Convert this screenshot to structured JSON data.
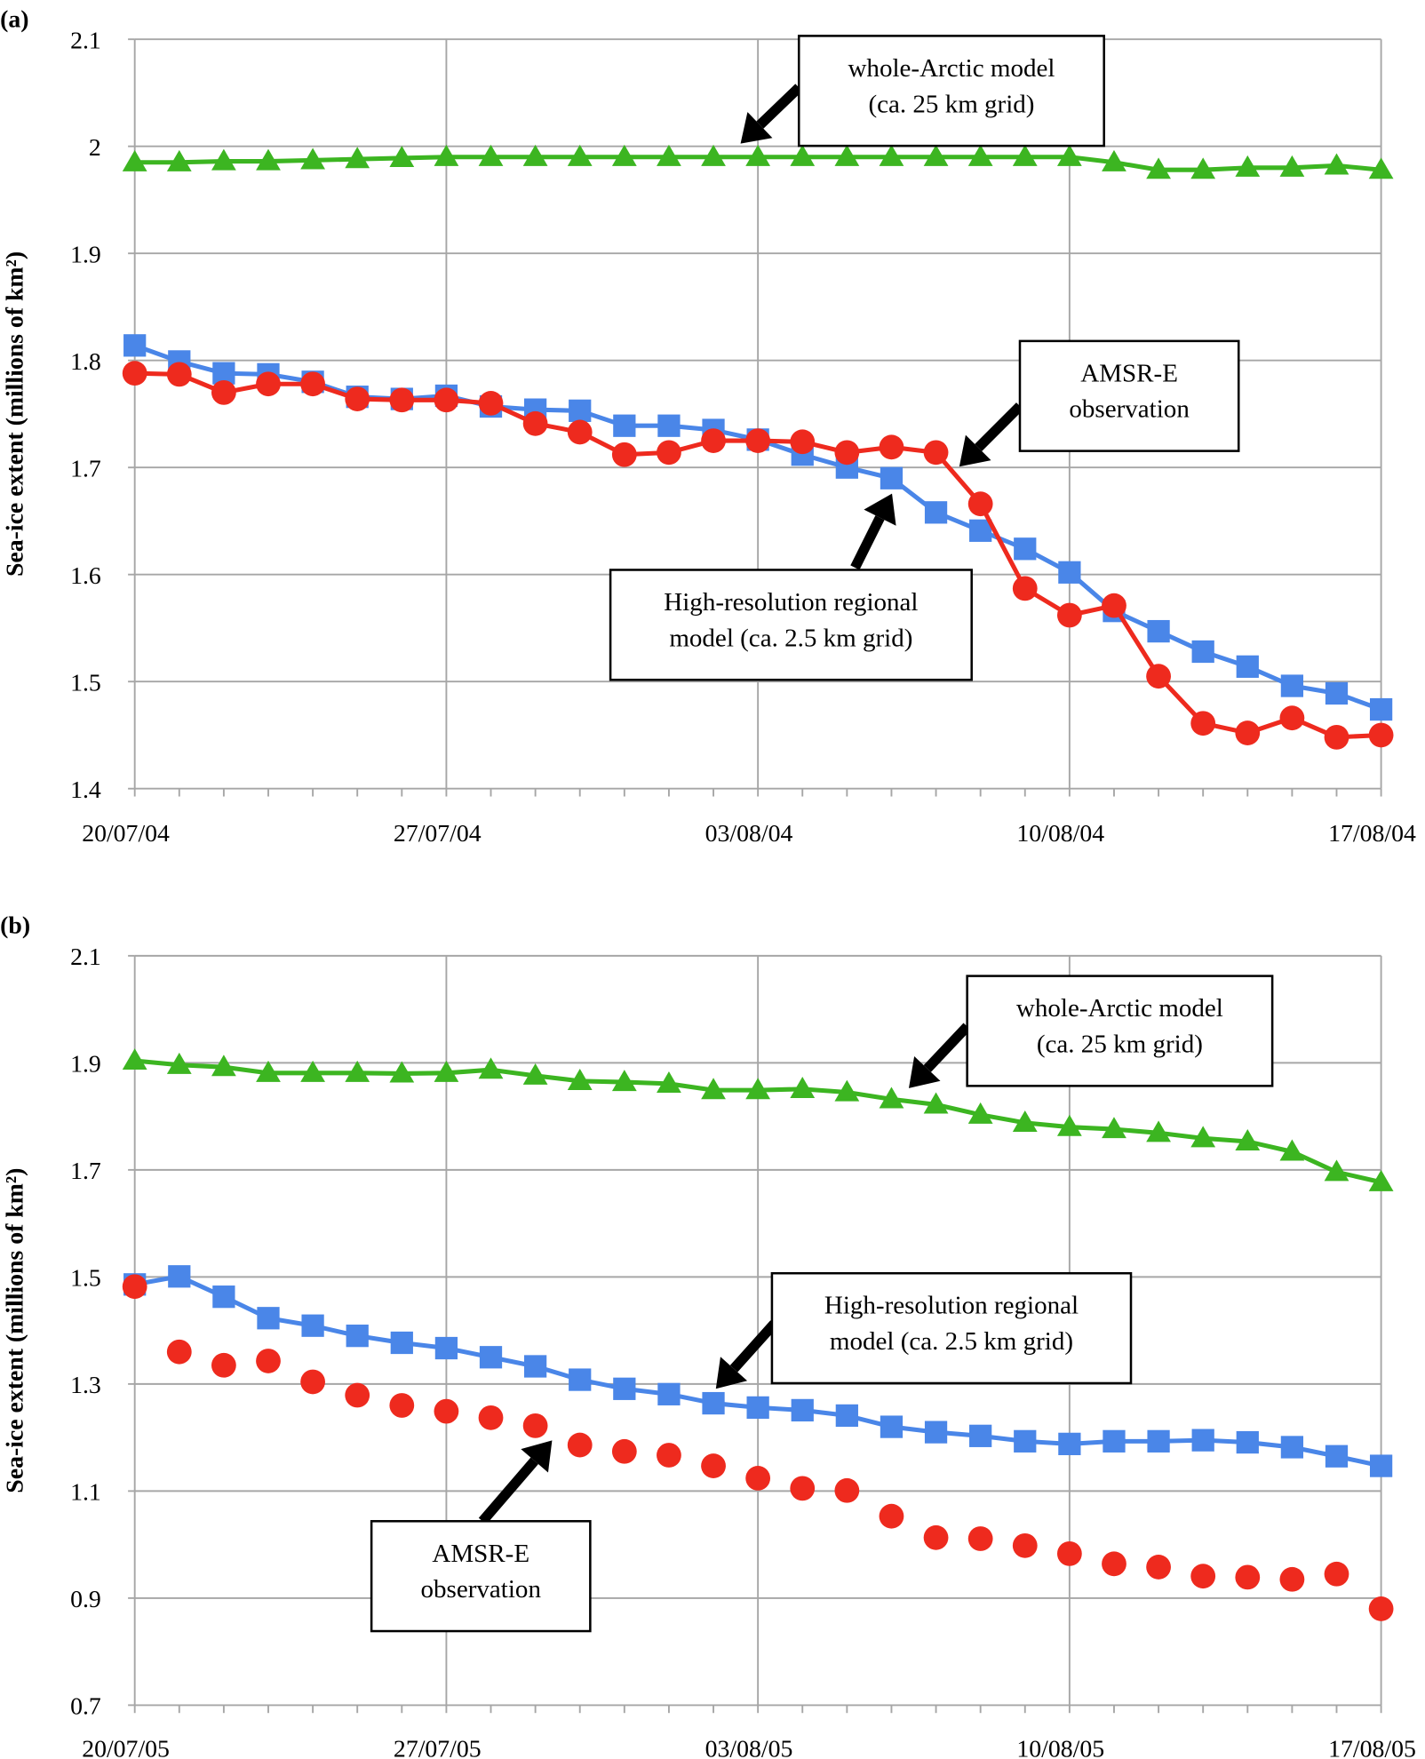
{
  "chart_data": [
    {
      "type": "line",
      "panel_label": "(a)",
      "ylabel": "Sea-ice extent (millions of km²)",
      "ylim": [
        1.4,
        2.1
      ],
      "yticks": [
        "1.4",
        "1.5",
        "1.6",
        "1.7",
        "1.8",
        "1.9",
        "2",
        "2.1"
      ],
      "xtick_labels": [
        "20/07/04",
        "27/07/04",
        "03/08/04",
        "10/08/04",
        "17/08/04"
      ],
      "x_days": 29,
      "grid": true,
      "series": [
        {
          "name": "whole-Arctic model",
          "color": "#3cb521",
          "marker": "triangle",
          "line": true,
          "values": [
            1.985,
            1.985,
            1.986,
            1.986,
            1.987,
            1.988,
            1.989,
            1.99,
            1.99,
            1.99,
            1.99,
            1.99,
            1.99,
            1.99,
            1.99,
            1.99,
            1.99,
            1.99,
            1.99,
            1.99,
            1.99,
            1.99,
            1.985,
            1.978,
            1.978,
            1.98,
            1.98,
            1.982,
            1.978
          ]
        },
        {
          "name": "High-resolution regional model",
          "color": "#4a86e8",
          "marker": "square",
          "line": true,
          "values": [
            1.814,
            1.799,
            1.788,
            1.787,
            1.78,
            1.766,
            1.764,
            1.767,
            1.757,
            1.754,
            1.753,
            1.739,
            1.739,
            1.735,
            1.726,
            1.712,
            1.7,
            1.69,
            1.658,
            1.641,
            1.624,
            1.602,
            1.566,
            1.547,
            1.528,
            1.514,
            1.496,
            1.489,
            1.474
          ]
        },
        {
          "name": "AMSR-E observation",
          "color": "#ee2a1e",
          "marker": "circle",
          "line": true,
          "values": [
            1.788,
            1.787,
            1.77,
            1.778,
            1.778,
            1.764,
            1.763,
            1.763,
            1.76,
            1.741,
            1.733,
            1.712,
            1.714,
            1.725,
            1.725,
            1.724,
            1.714,
            1.719,
            1.714,
            1.666,
            1.587,
            1.562,
            1.571,
            1.505,
            1.461,
            1.452,
            1.466,
            1.448,
            1.45
          ]
        }
      ],
      "annotations": [
        {
          "lines": [
            "whole-Arctic model",
            "(ca. 25 km grid)"
          ]
        },
        {
          "lines": [
            "AMSR-E",
            "observation"
          ]
        },
        {
          "lines": [
            "High-resolution regional",
            "model (ca. 2.5 km grid)"
          ]
        }
      ]
    },
    {
      "type": "line",
      "panel_label": "(b)",
      "ylabel": "Sea-ice extent (millions of km²)",
      "ylim": [
        0.7,
        2.1
      ],
      "yticks": [
        "0.7",
        "0.9",
        "1.1",
        "1.3",
        "1.5",
        "1.7",
        "1.9",
        "2.1"
      ],
      "xtick_labels": [
        "20/07/05",
        "27/07/05",
        "03/08/05",
        "10/08/05",
        "17/08/05"
      ],
      "x_days": 29,
      "grid": true,
      "series": [
        {
          "name": "whole-Arctic model",
          "color": "#3cb521",
          "marker": "triangle",
          "line": true,
          "values": [
            1.904,
            1.896,
            1.892,
            1.881,
            1.881,
            1.881,
            1.88,
            1.881,
            1.887,
            1.876,
            1.866,
            1.864,
            1.861,
            1.849,
            1.849,
            1.851,
            1.845,
            1.832,
            1.822,
            1.803,
            1.788,
            1.78,
            1.776,
            1.769,
            1.759,
            1.753,
            1.734,
            1.696,
            1.677
          ]
        },
        {
          "name": "High-resolution regional model",
          "color": "#4a86e8",
          "marker": "square",
          "line": true,
          "values": [
            1.486,
            1.501,
            1.463,
            1.423,
            1.409,
            1.39,
            1.377,
            1.367,
            1.35,
            1.333,
            1.308,
            1.291,
            1.281,
            1.264,
            1.256,
            1.251,
            1.241,
            1.22,
            1.21,
            1.203,
            1.193,
            1.188,
            1.193,
            1.193,
            1.195,
            1.191,
            1.182,
            1.165,
            1.147
          ]
        },
        {
          "name": "AMSR-E observation",
          "color": "#ee2a1e",
          "marker": "circle",
          "line": false,
          "values": [
            1.482,
            1.36,
            1.335,
            1.343,
            1.304,
            1.279,
            1.26,
            1.249,
            1.237,
            1.222,
            1.186,
            1.174,
            1.167,
            1.147,
            1.124,
            1.105,
            1.101,
            1.053,
            1.013,
            1.011,
            0.998,
            0.983,
            0.964,
            0.958,
            0.941,
            0.939,
            0.935,
            0.945,
            0.88
          ]
        }
      ],
      "annotations": [
        {
          "lines": [
            "whole-Arctic model",
            "(ca. 25 km grid)"
          ]
        },
        {
          "lines": [
            "High-resolution regional",
            "model (ca. 2.5 km grid)"
          ]
        },
        {
          "lines": [
            "AMSR-E",
            "observation"
          ]
        }
      ]
    }
  ]
}
